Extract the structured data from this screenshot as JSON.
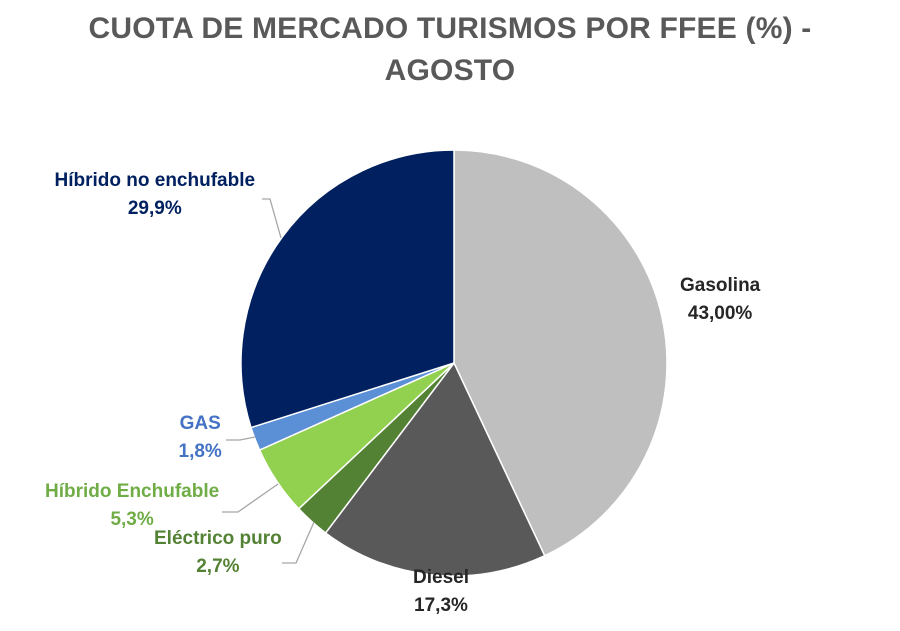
{
  "chart_data": {
    "type": "pie",
    "title_line_1": "CUOTA DE MERCADO TURISMOS POR FFEE (%) -",
    "title_line_2": "AGOSTO",
    "slices": [
      {
        "name": "Gasolina",
        "value": 43.0,
        "label": "43,00%",
        "color": "#bfbfbf",
        "text_color": "#262626"
      },
      {
        "name": "Diesel",
        "value": 17.3,
        "label": "17,3%",
        "color": "#595959",
        "text_color": "#262626"
      },
      {
        "name": "Eléctrico puro",
        "value": 2.7,
        "label": "2,7%",
        "color": "#548235",
        "text_color": "#548235"
      },
      {
        "name": "Híbrido Enchufable",
        "value": 5.3,
        "label": "5,3%",
        "color": "#92d050",
        "text_color": "#70ad47"
      },
      {
        "name": "GAS",
        "value": 1.8,
        "label": "1,8%",
        "color": "#5b8fd6",
        "text_color": "#4472c4"
      },
      {
        "name": "Híbrido no enchufable",
        "value": 29.9,
        "label": "29,9%",
        "color": "#002060",
        "text_color": "#002060"
      }
    ]
  }
}
